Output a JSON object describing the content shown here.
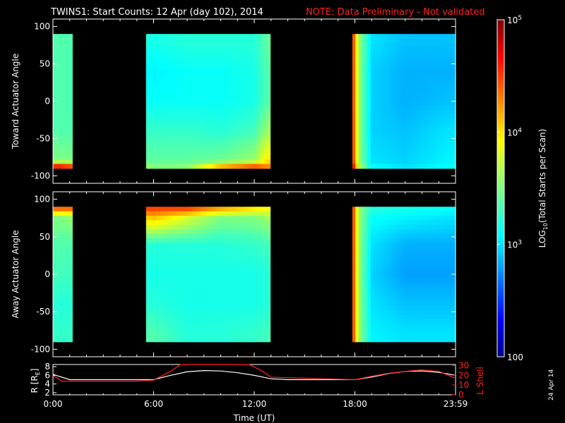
{
  "title": {
    "main": "TWINS1: Start Counts: 12 Apr (day 102), 2014",
    "note": "NOTE: Data Preliminary - Not validated"
  },
  "colors": {
    "background": "#000000",
    "note": "#ff2020",
    "axis": "#ffffff",
    "lshell_line": "#ff2020",
    "r_line": "#ffffff"
  },
  "chart_data": [
    {
      "type": "heatmap",
      "name": "toward",
      "ylabel": "Toward Actuator Angle",
      "ylim": [
        -110,
        110
      ],
      "yticks": [
        "100",
        "50",
        "0",
        "-50",
        "-100"
      ],
      "ytick_values": [
        100,
        50,
        0,
        -50,
        -100
      ],
      "data_angle_range": [
        -90,
        90
      ],
      "xlim_hours": [
        0,
        24
      ],
      "segments_hours": [
        [
          0,
          1.15
        ],
        [
          5.55,
          12.95
        ],
        [
          17.85,
          24
        ]
      ],
      "log10_counts_grid": {
        "hours": [
          0.5,
          6,
          8,
          10,
          12,
          12.8,
          18.0,
          18.2,
          19,
          21,
          23.5
        ],
        "angles": [
          80,
          40,
          0,
          -40,
          -80,
          -88
        ],
        "values": [
          [
            3.35,
            3.15,
            3.2,
            3.2,
            3.2,
            3.4,
            4.4,
            3.6,
            3.0,
            2.9,
            2.9
          ],
          [
            3.35,
            3.05,
            3.1,
            3.1,
            3.15,
            3.35,
            4.4,
            3.6,
            2.95,
            2.85,
            2.85
          ],
          [
            3.35,
            3.1,
            3.1,
            3.1,
            3.15,
            3.35,
            4.4,
            3.6,
            2.95,
            2.85,
            2.9
          ],
          [
            3.35,
            3.25,
            3.25,
            3.2,
            3.3,
            3.6,
            4.4,
            3.6,
            2.95,
            2.9,
            3.0
          ],
          [
            3.5,
            3.4,
            3.4,
            3.45,
            3.6,
            4.0,
            4.4,
            3.6,
            3.0,
            2.95,
            3.05
          ],
          [
            4.7,
            3.5,
            3.55,
            4.2,
            4.5,
            4.3,
            4.6,
            3.7,
            3.1,
            3.0,
            3.1
          ]
        ]
      }
    },
    {
      "type": "heatmap",
      "name": "away",
      "ylabel": "Away Actuator Angle",
      "ylim": [
        -110,
        110
      ],
      "yticks": [
        "100",
        "50",
        "0",
        "-50",
        "-100"
      ],
      "ytick_values": [
        100,
        50,
        0,
        -50,
        -100
      ],
      "data_angle_range": [
        -90,
        90
      ],
      "xlim_hours": [
        0,
        24
      ],
      "segments_hours": [
        [
          0,
          1.15
        ],
        [
          5.55,
          12.95
        ],
        [
          17.85,
          24
        ]
      ],
      "log10_counts_grid": {
        "hours": [
          0.5,
          6,
          8,
          10,
          12,
          12.8,
          18.0,
          18.2,
          19,
          21,
          23.5
        ],
        "angles": [
          88,
          75,
          40,
          0,
          -40,
          -80
        ],
        "values": [
          [
            4.4,
            4.5,
            4.5,
            4.2,
            4.0,
            3.9,
            4.4,
            3.6,
            3.2,
            3.15,
            3.1
          ],
          [
            3.5,
            4.1,
            3.8,
            3.5,
            3.5,
            3.6,
            4.4,
            3.6,
            3.1,
            3.05,
            3.0
          ],
          [
            3.35,
            3.2,
            3.2,
            3.2,
            3.25,
            3.3,
            4.4,
            3.6,
            3.0,
            2.85,
            2.85
          ],
          [
            3.3,
            3.15,
            3.15,
            3.15,
            3.15,
            3.2,
            4.4,
            3.6,
            2.95,
            2.8,
            2.8
          ],
          [
            3.2,
            3.2,
            3.15,
            3.15,
            3.15,
            3.2,
            4.4,
            3.6,
            3.0,
            2.9,
            2.9
          ],
          [
            3.25,
            3.35,
            3.2,
            3.2,
            3.25,
            3.3,
            4.4,
            3.6,
            3.05,
            3.0,
            3.0
          ]
        ]
      }
    },
    {
      "type": "line",
      "name": "ephemeris",
      "xlabel": "Time (UT)",
      "xticks": [
        "0:00",
        "6:00",
        "12:00",
        "18:00",
        "23:59"
      ],
      "xtick_hours": [
        0,
        6,
        12,
        18,
        24
      ],
      "left_axis": {
        "label": "R [R",
        "label_sub": "E",
        "label_end": "]",
        "ticks": [
          "8",
          "6",
          "4",
          "2"
        ],
        "tick_values": [
          8,
          6,
          4,
          2
        ],
        "ylim": [
          1.5,
          8.5
        ]
      },
      "right_axis": {
        "label": "L Shell",
        "ticks": [
          "30",
          "20",
          "10",
          "0"
        ],
        "tick_values": [
          30,
          20,
          10,
          0
        ],
        "ylim": [
          0,
          31
        ]
      },
      "series": [
        {
          "axis": "left",
          "x": [
            0,
            1,
            2,
            3,
            4,
            5,
            6,
            7,
            8,
            9,
            10,
            11,
            12,
            13,
            14,
            15,
            16,
            17,
            18,
            19,
            20,
            21,
            22,
            23,
            24
          ],
          "y": [
            6.2,
            5.0,
            5.0,
            5.0,
            5.0,
            5.0,
            5.0,
            6.0,
            6.8,
            7.1,
            7.0,
            6.6,
            6.0,
            5.2,
            5.0,
            5.0,
            5.0,
            5.0,
            5.0,
            5.6,
            6.4,
            6.9,
            7.0,
            6.7,
            6.0
          ]
        },
        {
          "axis": "right",
          "x": [
            0,
            0.5,
            1,
            2,
            3,
            4,
            5,
            6,
            7,
            7.6,
            11.7,
            12.5,
            13,
            14,
            15,
            16,
            17,
            18,
            19,
            20,
            21,
            22,
            23,
            24
          ],
          "y": [
            20,
            14,
            14,
            14,
            14,
            14,
            14,
            15,
            24,
            31,
            31,
            24,
            18,
            17.5,
            17,
            16.5,
            16,
            15.5,
            19,
            22,
            24,
            25.5,
            24,
            17
          ]
        }
      ]
    }
  ],
  "colorbar": {
    "label": "LOG",
    "label_sub": "10",
    "label_rest": "(Total Starts per Scan)",
    "ticks": [
      {
        "base": "10",
        "exp": "5",
        "value": 5
      },
      {
        "base": "10",
        "exp": "4",
        "value": 4
      },
      {
        "base": "10",
        "exp": "3",
        "value": 3
      },
      {
        "base": "100",
        "exp": "",
        "value": 2
      }
    ],
    "range_log10": [
      2,
      5
    ]
  },
  "date_stamp": "24 Apr 14"
}
